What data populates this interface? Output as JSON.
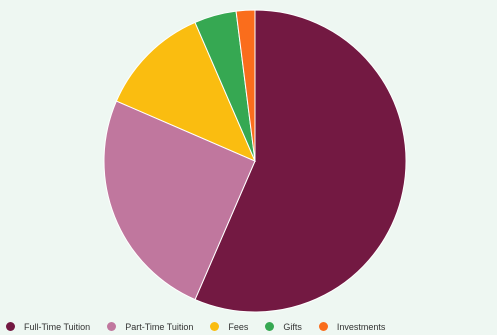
{
  "chart_data": {
    "type": "pie",
    "title": "",
    "legend_position": "bottom",
    "slices": [
      {
        "label": "Full-Time Tuition",
        "value": 56.5,
        "color": "#731942"
      },
      {
        "label": "Part-Time Tuition",
        "value": 25.0,
        "color": "#c0779e"
      },
      {
        "label": "Fees",
        "value": 12.0,
        "color": "#fabd10"
      },
      {
        "label": "Gifts",
        "value": 4.5,
        "color": "#36a852"
      },
      {
        "label": "Investments",
        "value": 2.0,
        "color": "#fa6d1c"
      }
    ]
  }
}
